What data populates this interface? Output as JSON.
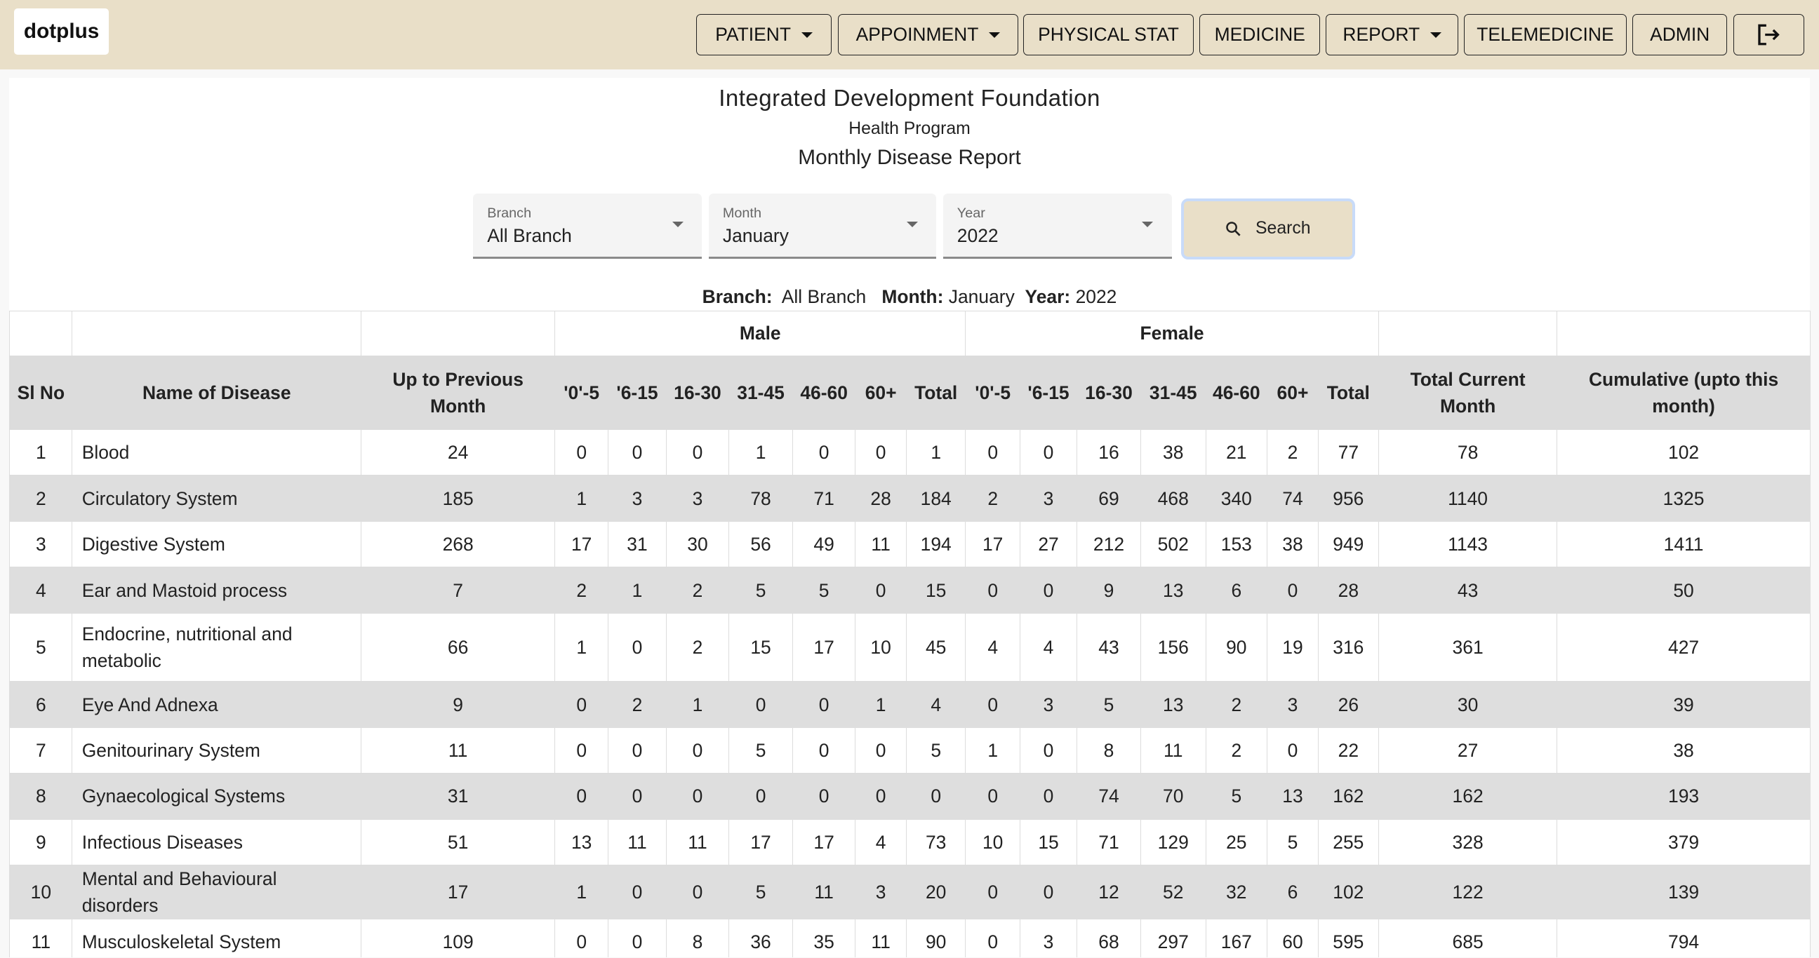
{
  "brand": {
    "logo": "dotplus"
  },
  "nav": [
    {
      "label": "PATIENT",
      "dropdown": true
    },
    {
      "label": "APPOINMENT",
      "dropdown": true
    },
    {
      "label": "PHYSICAL STAT",
      "dropdown": false
    },
    {
      "label": "MEDICINE",
      "dropdown": false
    },
    {
      "label": "REPORT",
      "dropdown": true
    },
    {
      "label": "TELEMEDICINE",
      "dropdown": false
    },
    {
      "label": "ADMIN",
      "dropdown": false
    }
  ],
  "logout_icon": "logout-icon",
  "report": {
    "org": "Integrated Development Foundation",
    "program": "Health Program",
    "title": "Monthly Disease Report"
  },
  "filters": {
    "branch": {
      "label": "Branch",
      "value": "All Branch"
    },
    "month": {
      "label": "Month",
      "value": "January"
    },
    "year": {
      "label": "Year",
      "value": "2022"
    },
    "search_label": "Search"
  },
  "summary": {
    "branch_label": "Branch:",
    "branch": "All Branch",
    "month_label": "Month:",
    "month": "January",
    "year_label": "Year:",
    "year": "2022"
  },
  "colors": {
    "header_bg": "#e9dfc8",
    "row_alt": "#dedede"
  },
  "table": {
    "groups": {
      "male": "Male",
      "female": "Female"
    },
    "headers": [
      "Sl No",
      "Name of Disease",
      "Up to Previous Month",
      "'0'-5",
      "'6-15",
      "16-30",
      "31-45",
      "46-60",
      "60+",
      "Total",
      "'0'-5",
      "'6-15",
      "16-30",
      "31-45",
      "46-60",
      "60+",
      "Total",
      "Total Current Month",
      "Cumulative (upto this month)"
    ],
    "rows": [
      [
        "1",
        "Blood",
        "24",
        "0",
        "0",
        "0",
        "1",
        "0",
        "0",
        "1",
        "0",
        "0",
        "16",
        "38",
        "21",
        "2",
        "77",
        "78",
        "102"
      ],
      [
        "2",
        "Circulatory System",
        "185",
        "1",
        "3",
        "3",
        "78",
        "71",
        "28",
        "184",
        "2",
        "3",
        "69",
        "468",
        "340",
        "74",
        "956",
        "1140",
        "1325"
      ],
      [
        "3",
        "Digestive System",
        "268",
        "17",
        "31",
        "30",
        "56",
        "49",
        "11",
        "194",
        "17",
        "27",
        "212",
        "502",
        "153",
        "38",
        "949",
        "1143",
        "1411"
      ],
      [
        "4",
        "Ear and Mastoid process",
        "7",
        "2",
        "1",
        "2",
        "5",
        "5",
        "0",
        "15",
        "0",
        "0",
        "9",
        "13",
        "6",
        "0",
        "28",
        "43",
        "50"
      ],
      [
        "5",
        "Endocrine, nutritional and metabolic",
        "66",
        "1",
        "0",
        "2",
        "15",
        "17",
        "10",
        "45",
        "4",
        "4",
        "43",
        "156",
        "90",
        "19",
        "316",
        "361",
        "427"
      ],
      [
        "6",
        "Eye And Adnexa",
        "9",
        "0",
        "2",
        "1",
        "0",
        "0",
        "1",
        "4",
        "0",
        "3",
        "5",
        "13",
        "2",
        "3",
        "26",
        "30",
        "39"
      ],
      [
        "7",
        "Genitourinary System",
        "11",
        "0",
        "0",
        "0",
        "5",
        "0",
        "0",
        "5",
        "1",
        "0",
        "8",
        "11",
        "2",
        "0",
        "22",
        "27",
        "38"
      ],
      [
        "8",
        "Gynaecological Systems",
        "31",
        "0",
        "0",
        "0",
        "0",
        "0",
        "0",
        "0",
        "0",
        "0",
        "74",
        "70",
        "5",
        "13",
        "162",
        "162",
        "193"
      ],
      [
        "9",
        "Infectious Diseases",
        "51",
        "13",
        "11",
        "11",
        "17",
        "17",
        "4",
        "73",
        "10",
        "15",
        "71",
        "129",
        "25",
        "5",
        "255",
        "328",
        "379"
      ],
      [
        "10",
        "Mental and Behavioural disorders",
        "17",
        "1",
        "0",
        "0",
        "5",
        "11",
        "3",
        "20",
        "0",
        "0",
        "12",
        "52",
        "32",
        "6",
        "102",
        "122",
        "139"
      ],
      [
        "11",
        "Musculoskeletal System",
        "109",
        "0",
        "0",
        "8",
        "36",
        "35",
        "11",
        "90",
        "0",
        "3",
        "68",
        "297",
        "167",
        "60",
        "595",
        "685",
        "794"
      ]
    ]
  }
}
